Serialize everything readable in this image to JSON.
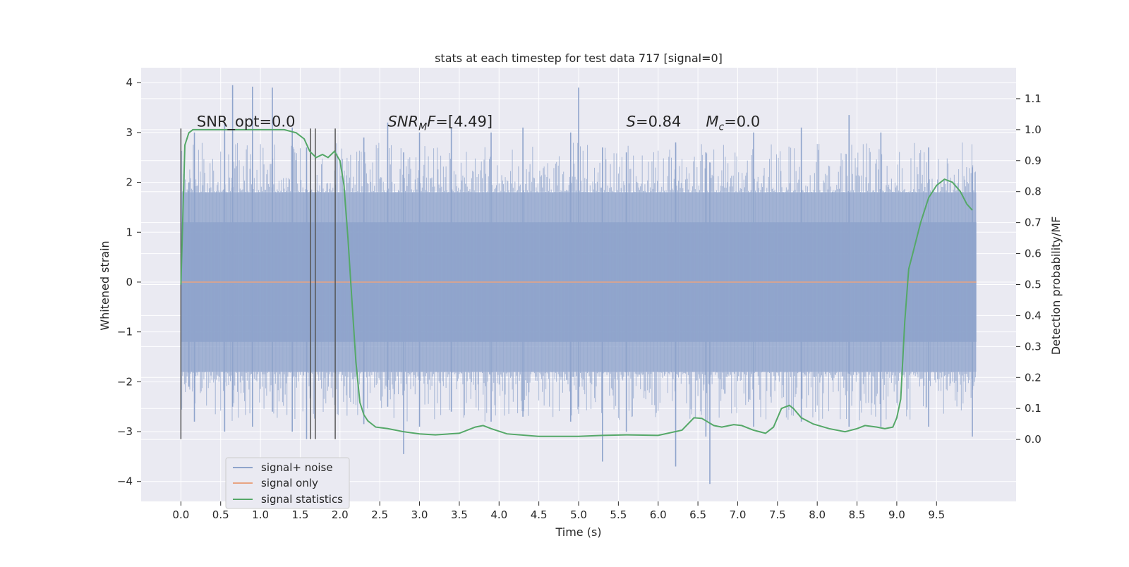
{
  "chart_data": {
    "type": "line",
    "title": "stats at each timestep for test data 717 [signal=0]",
    "xlabel": "Time (s)",
    "ylabel": "Whitened strain",
    "y2label": "Detection probability/MF",
    "xlim": [
      -0.5,
      10.5
    ],
    "ylim": [
      -4.4,
      4.3
    ],
    "y2lim": [
      -0.2,
      1.2
    ],
    "x_ticks": [
      0.0,
      0.5,
      1.0,
      1.5,
      2.0,
      2.5,
      3.0,
      3.5,
      4.0,
      4.5,
      5.0,
      5.5,
      6.0,
      6.5,
      7.0,
      7.5,
      8.0,
      8.5,
      9.0,
      9.5
    ],
    "x_tick_labels": [
      "0.0",
      "0.5",
      "1.0",
      "1.5",
      "2.0",
      "2.5",
      "3.0",
      "3.5",
      "4.0",
      "4.5",
      "5.0",
      "5.5",
      "6.0",
      "6.5",
      "7.0",
      "7.5",
      "8.0",
      "8.5",
      "9.0",
      "9.5"
    ],
    "y_ticks": [
      4,
      3,
      2,
      1,
      0,
      -1,
      -2,
      -3,
      -4
    ],
    "y_tick_labels": [
      "4",
      "3",
      "2",
      "1",
      "0",
      "−1",
      "−2",
      "−3",
      "−4"
    ],
    "y2_ticks": [
      1.1,
      1.0,
      0.9,
      0.8,
      0.7,
      0.6,
      0.5,
      0.4,
      0.3,
      0.2,
      0.1,
      0.0
    ],
    "y2_tick_labels": [
      "1.1",
      "1.0",
      "0.9",
      "0.8",
      "0.7",
      "0.6",
      "0.5",
      "0.4",
      "0.3",
      "0.2",
      "0.1",
      "0.0"
    ],
    "grid": true,
    "legend_position": "lower-left",
    "annotations": [
      {
        "id": "snr-opt",
        "text": "SNR_opt=0.0",
        "x": 0.2,
        "y2": 1.01
      },
      {
        "id": "snr-mf",
        "text": "=[4.49]",
        "prefix": "SNR",
        "sub": "M",
        "mid": "F",
        "x": 2.6,
        "y2": 1.01
      },
      {
        "id": "s-value",
        "text": "=0.84",
        "prefix": "S",
        "x": 5.6,
        "y2": 1.01
      },
      {
        "id": "mc-value",
        "text": "=0.0",
        "prefix": "M",
        "sub": "c",
        "x": 6.6,
        "y2": 1.01
      }
    ],
    "vertical_lines": [
      0.0,
      1.63,
      1.69,
      1.94
    ],
    "vertical_line_range": [
      -3.15,
      3.08
    ],
    "series": [
      {
        "name": "signal+ noise",
        "color": "#8fa4cc",
        "kind": "noise",
        "band_main": [
          -1.2,
          1.2
        ],
        "band_inner": [
          -1.8,
          1.8
        ],
        "spikes": [
          {
            "x": 0.1,
            "lo": -2.1,
            "hi": 2.0
          },
          {
            "x": 0.17,
            "lo": -2.8,
            "hi": 3.0
          },
          {
            "x": 0.55,
            "lo": -3.0,
            "hi": 3.2
          },
          {
            "x": 0.65,
            "lo": -2.5,
            "hi": 3.95
          },
          {
            "x": 0.9,
            "lo": -2.9,
            "hi": 3.92
          },
          {
            "x": 1.15,
            "lo": -2.6,
            "hi": 3.9
          },
          {
            "x": 1.4,
            "lo": -3.0,
            "hi": 3.1
          },
          {
            "x": 1.58,
            "lo": -3.15,
            "hi": 2.7
          },
          {
            "x": 2.3,
            "lo": -2.85,
            "hi": 2.9
          },
          {
            "x": 2.6,
            "lo": -2.5,
            "hi": 3.2
          },
          {
            "x": 2.8,
            "lo": -3.45,
            "hi": 2.6
          },
          {
            "x": 3.0,
            "lo": -2.9,
            "hi": 3.0
          },
          {
            "x": 3.4,
            "lo": -2.6,
            "hi": 3.1
          },
          {
            "x": 3.9,
            "lo": -2.8,
            "hi": 3.0
          },
          {
            "x": 4.3,
            "lo": -2.7,
            "hi": 3.1
          },
          {
            "x": 4.9,
            "lo": -2.8,
            "hi": 3.0
          },
          {
            "x": 5.0,
            "lo": -2.5,
            "hi": 3.9
          },
          {
            "x": 5.3,
            "lo": -3.6,
            "hi": 2.7
          },
          {
            "x": 5.6,
            "lo": -3.0,
            "hi": 2.6
          },
          {
            "x": 6.22,
            "lo": -3.7,
            "hi": 2.8
          },
          {
            "x": 6.6,
            "lo": -3.1,
            "hi": 2.6
          },
          {
            "x": 6.65,
            "lo": -4.05,
            "hi": 2.4
          },
          {
            "x": 7.2,
            "lo": -2.9,
            "hi": 3.0
          },
          {
            "x": 7.8,
            "lo": -2.8,
            "hi": 3.1
          },
          {
            "x": 8.4,
            "lo": -2.9,
            "hi": 3.35
          },
          {
            "x": 8.8,
            "lo": -2.9,
            "hi": 3.0
          },
          {
            "x": 9.4,
            "lo": -2.9,
            "hi": 2.7
          },
          {
            "x": 9.95,
            "lo": -3.1,
            "hi": 2.3
          }
        ]
      },
      {
        "name": "signal only",
        "color": "#e8a482",
        "x": [
          0.0,
          10.0
        ],
        "y": [
          0.0,
          0.0
        ]
      },
      {
        "name": "signal statistics",
        "color": "#55a868",
        "axis": "y2",
        "x": [
          0.0,
          0.05,
          0.1,
          0.15,
          0.2,
          0.3,
          0.5,
          0.8,
          1.0,
          1.3,
          1.45,
          1.55,
          1.62,
          1.7,
          1.78,
          1.85,
          1.93,
          2.0,
          2.05,
          2.1,
          2.15,
          2.2,
          2.25,
          2.3,
          2.35,
          2.45,
          2.6,
          2.8,
          3.0,
          3.2,
          3.5,
          3.7,
          3.8,
          3.9,
          4.1,
          4.5,
          5.0,
          5.3,
          5.6,
          6.0,
          6.3,
          6.45,
          6.55,
          6.7,
          6.8,
          6.95,
          7.05,
          7.2,
          7.35,
          7.45,
          7.55,
          7.65,
          7.7,
          7.8,
          7.95,
          8.15,
          8.35,
          8.5,
          8.6,
          8.75,
          8.85,
          8.95,
          9.0,
          9.05,
          9.1,
          9.15,
          9.2,
          9.3,
          9.4,
          9.5,
          9.6,
          9.7,
          9.8,
          9.88,
          9.95
        ],
        "y": [
          0.5,
          0.95,
          0.99,
          1.0,
          1.0,
          1.0,
          1.0,
          1.0,
          1.0,
          1.0,
          0.99,
          0.97,
          0.93,
          0.91,
          0.92,
          0.91,
          0.93,
          0.9,
          0.82,
          0.65,
          0.45,
          0.25,
          0.12,
          0.08,
          0.06,
          0.04,
          0.035,
          0.025,
          0.018,
          0.015,
          0.02,
          0.04,
          0.045,
          0.035,
          0.018,
          0.01,
          0.01,
          0.013,
          0.015,
          0.013,
          0.03,
          0.07,
          0.068,
          0.045,
          0.04,
          0.048,
          0.045,
          0.03,
          0.02,
          0.04,
          0.1,
          0.11,
          0.1,
          0.07,
          0.05,
          0.035,
          0.025,
          0.035,
          0.045,
          0.04,
          0.035,
          0.04,
          0.07,
          0.13,
          0.38,
          0.55,
          0.6,
          0.7,
          0.78,
          0.82,
          0.84,
          0.83,
          0.8,
          0.76,
          0.74
        ]
      }
    ]
  }
}
